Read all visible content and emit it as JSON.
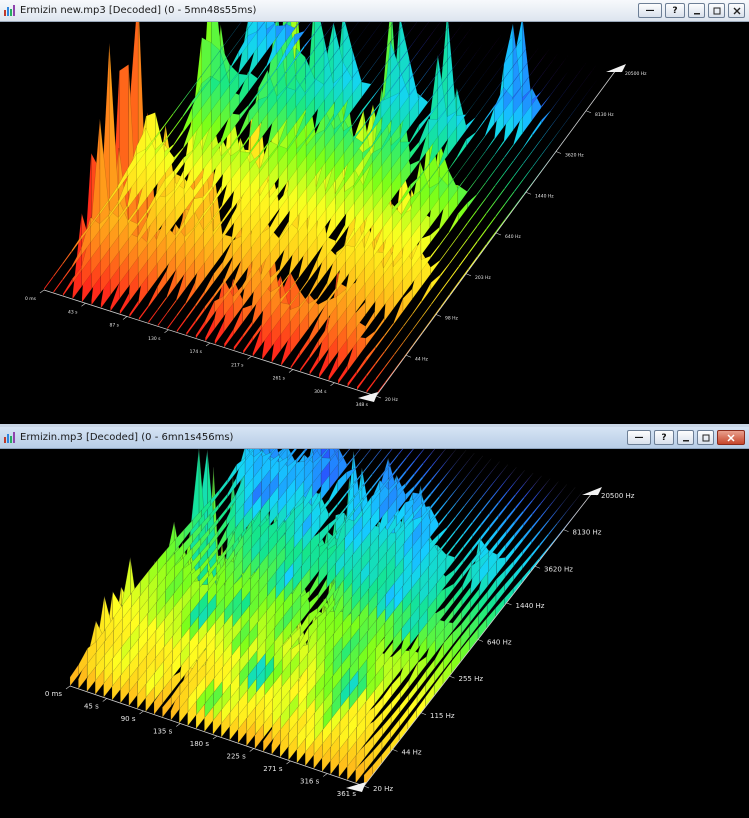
{
  "windows": [
    {
      "title": "Ermizin new.mp3 [Decoded] (0 - 5mn48s55ms)",
      "buttons": [
        "—",
        "?"
      ],
      "time_ticks": [
        "0 ms",
        "43 s",
        "87 s",
        "130 s",
        "174 s",
        "217 s",
        "261 s",
        "304 s",
        "348 s"
      ],
      "freq_ticks": [
        "20 Hz",
        "44 Hz",
        "98 Hz",
        "203 Hz",
        "640 Hz",
        "1440 Hz",
        "3620 Hz",
        "8130 Hz",
        "20500 Hz"
      ]
    },
    {
      "title": "Ermizin.mp3 [Decoded] (0 - 6mn1s456ms)",
      "buttons": [
        "—",
        "?"
      ],
      "time_ticks": [
        "0 ms",
        "45 s",
        "90 s",
        "135 s",
        "180 s",
        "225 s",
        "271 s",
        "316 s",
        "361 s"
      ],
      "freq_ticks": [
        "20 Hz",
        "44 Hz",
        "115 Hz",
        "255 Hz",
        "640 Hz",
        "1440 Hz",
        "3620 Hz",
        "8130 Hz",
        "20500 Hz"
      ]
    }
  ],
  "colors": {
    "gradient": [
      "#ff2a1a",
      "#ff8c1a",
      "#ffd21a",
      "#ffff20",
      "#7cff1a",
      "#14e68c",
      "#14d2ff",
      "#2a50ff",
      "#d21aff"
    ]
  }
}
